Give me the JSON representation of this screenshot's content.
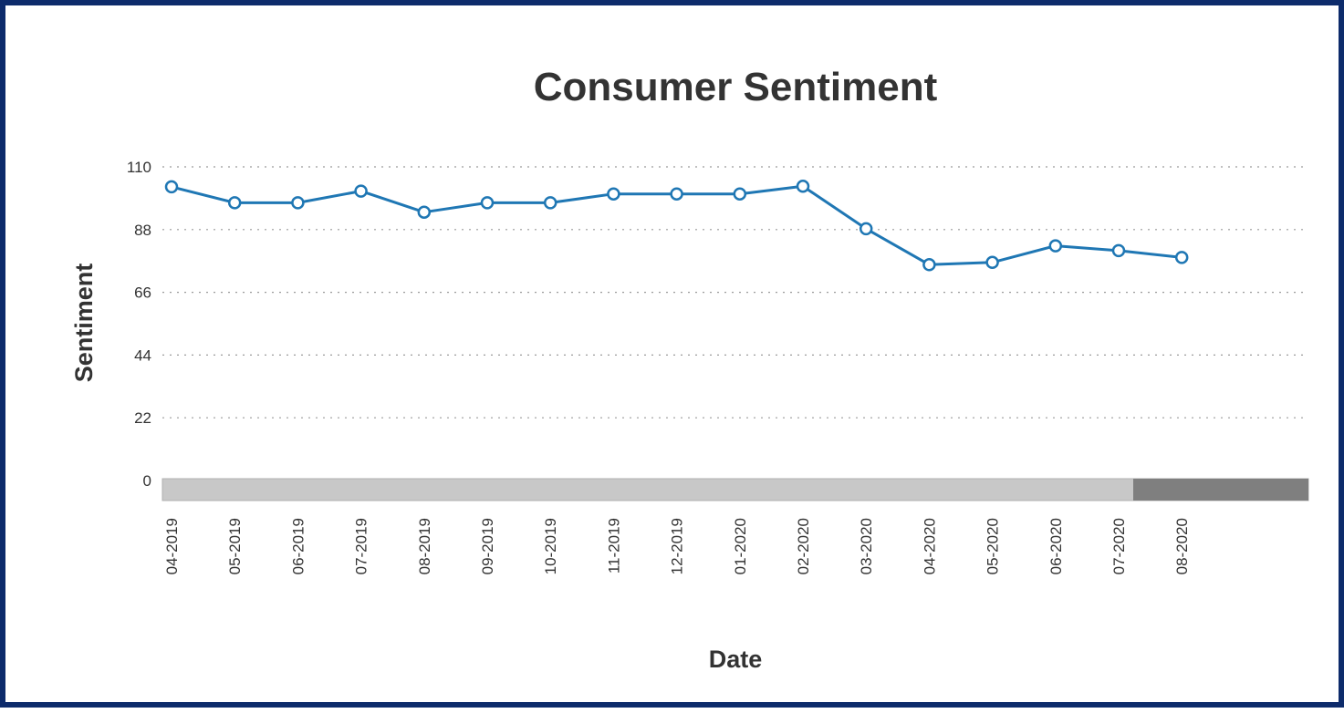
{
  "chart_data": {
    "type": "line",
    "title": "Consumer Sentiment",
    "xlabel": "Date",
    "ylabel": "Sentiment",
    "ylim": [
      0,
      110
    ],
    "yticks": [
      "0",
      "22",
      "44",
      "66",
      "88",
      "110"
    ],
    "grid": true,
    "legend": "none",
    "categories": [
      "04-2019",
      "05-2019",
      "06-2019",
      "07-2019",
      "08-2019",
      "09-2019",
      "10-2019",
      "11-2019",
      "12-2019",
      "01-2020",
      "02-2020",
      "03-2020",
      "04-2020",
      "05-2020",
      "06-2020",
      "07-2020",
      "08-2020"
    ],
    "series": [
      {
        "color": "#1f77b4",
        "values": [
          103,
          97.4,
          97.4,
          101.5,
          94.1,
          97.4,
          97.4,
          100.5,
          100.5,
          100.5,
          103.2,
          88.3,
          75.7,
          76.5,
          82.3,
          80.6,
          78.2
        ]
      }
    ],
    "navigator": {
      "track_color": "#c8c8c8",
      "thumb_color": "#7f7f7f"
    }
  }
}
